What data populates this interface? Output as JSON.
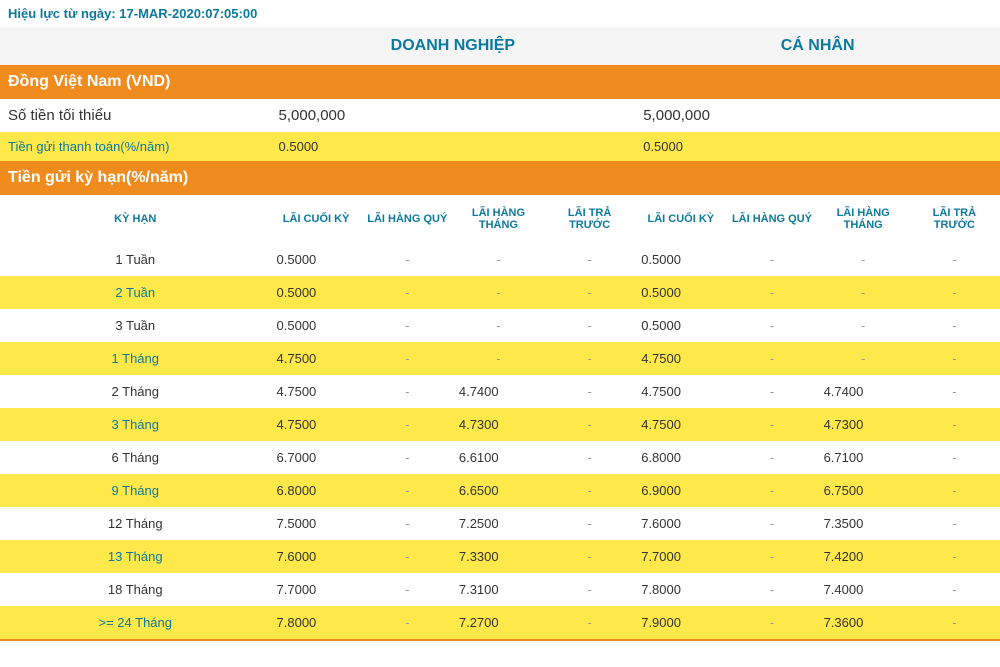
{
  "effective_label": "Hiệu lực từ ngày: ",
  "effective_date": "17-MAR-2020:07:05:00",
  "header": {
    "blank": "",
    "corporate": "DOANH NGHIỆP",
    "individual": "CÁ NHÂN"
  },
  "currency_section": "Đồng Việt Nam (VND)",
  "min_amount_label": "Số tiền tối thiểu",
  "min_amount_corp": "5,000,000",
  "min_amount_ind": "5,000,000",
  "payment_deposit_label": "Tiền gửi thanh toán(%/năm)",
  "payment_deposit_corp": "0.5000",
  "payment_deposit_ind": "0.5000",
  "term_section": "Tiền gửi kỳ hạn(%/năm)",
  "sub_headers": {
    "term": "KỲ HẠN",
    "end_period": "LÃI CUỐI KỲ",
    "quarterly": "LÃI HÀNG QUÝ",
    "monthly": "LÃI HÀNG THÁNG",
    "prepaid": "LÃI TRẢ TRƯỚC"
  },
  "rows": [
    {
      "term": "1 Tuần",
      "c1": "0.5000",
      "c2": "-",
      "c3": "-",
      "c4": "-",
      "i1": "0.5000",
      "i2": "-",
      "i3": "-",
      "i4": "-",
      "stripe": "white"
    },
    {
      "term": "2 Tuần",
      "c1": "0.5000",
      "c2": "-",
      "c3": "-",
      "c4": "-",
      "i1": "0.5000",
      "i2": "-",
      "i3": "-",
      "i4": "-",
      "stripe": "yellow"
    },
    {
      "term": "3 Tuần",
      "c1": "0.5000",
      "c2": "-",
      "c3": "-",
      "c4": "-",
      "i1": "0.5000",
      "i2": "-",
      "i3": "-",
      "i4": "-",
      "stripe": "white"
    },
    {
      "term": "1 Tháng",
      "c1": "4.7500",
      "c2": "-",
      "c3": "-",
      "c4": "-",
      "i1": "4.7500",
      "i2": "-",
      "i3": "-",
      "i4": "-",
      "stripe": "yellow"
    },
    {
      "term": "2 Tháng",
      "c1": "4.7500",
      "c2": "-",
      "c3": "4.7400",
      "c4": "-",
      "i1": "4.7500",
      "i2": "-",
      "i3": "4.7400",
      "i4": "-",
      "stripe": "white"
    },
    {
      "term": "3 Tháng",
      "c1": "4.7500",
      "c2": "-",
      "c3": "4.7300",
      "c4": "-",
      "i1": "4.7500",
      "i2": "-",
      "i3": "4.7300",
      "i4": "-",
      "stripe": "yellow"
    },
    {
      "term": "6 Tháng",
      "c1": "6.7000",
      "c2": "-",
      "c3": "6.6100",
      "c4": "-",
      "i1": "6.8000",
      "i2": "-",
      "i3": "6.7100",
      "i4": "-",
      "stripe": "white"
    },
    {
      "term": "9 Tháng",
      "c1": "6.8000",
      "c2": "-",
      "c3": "6.6500",
      "c4": "-",
      "i1": "6.9000",
      "i2": "-",
      "i3": "6.7500",
      "i4": "-",
      "stripe": "yellow"
    },
    {
      "term": "12 Tháng",
      "c1": "7.5000",
      "c2": "-",
      "c3": "7.2500",
      "c4": "-",
      "i1": "7.6000",
      "i2": "-",
      "i3": "7.3500",
      "i4": "-",
      "stripe": "white"
    },
    {
      "term": "13 Tháng",
      "c1": "7.6000",
      "c2": "-",
      "c3": "7.3300",
      "c4": "-",
      "i1": "7.7000",
      "i2": "-",
      "i3": "7.4200",
      "i4": "-",
      "stripe": "yellow"
    },
    {
      "term": "18 Tháng",
      "c1": "7.7000",
      "c2": "-",
      "c3": "7.3100",
      "c4": "-",
      "i1": "7.8000",
      "i2": "-",
      "i3": "7.4000",
      "i4": "-",
      "stripe": "white"
    },
    {
      "term": ">= 24 Tháng",
      "c1": "7.8000",
      "c2": "-",
      "c3": "7.2700",
      "c4": "-",
      "i1": "7.9000",
      "i2": "-",
      "i3": "7.3600",
      "i4": "-",
      "stripe": "yellow"
    }
  ]
}
